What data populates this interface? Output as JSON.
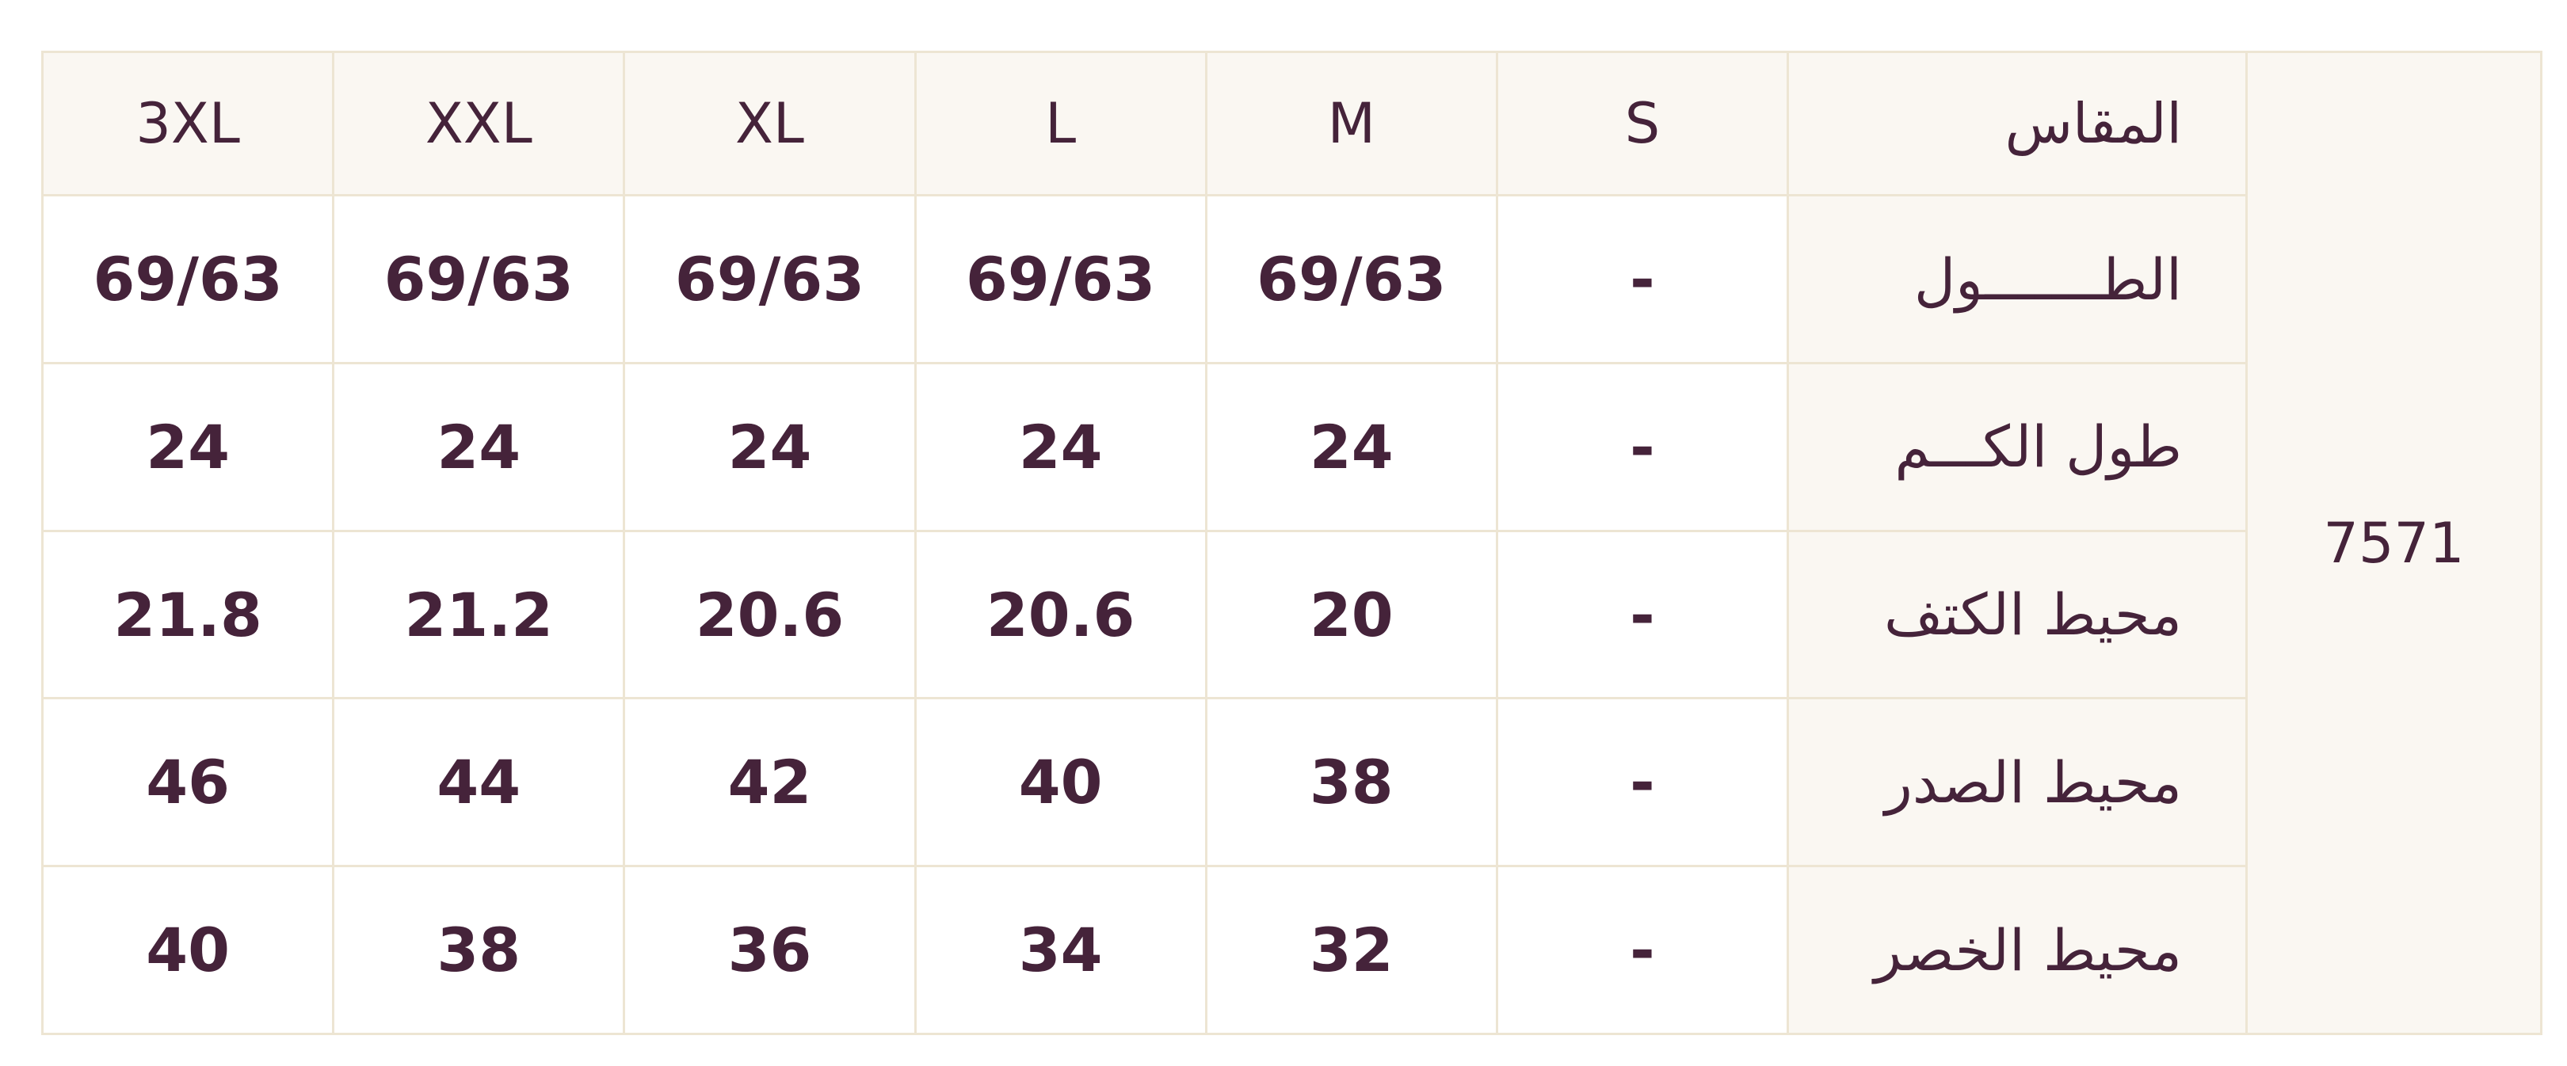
{
  "product_code": "7571",
  "header": {
    "label": "المقاس",
    "sizes": [
      "S",
      "M",
      "L",
      "XL",
      "XXL",
      "3XL"
    ]
  },
  "rows": [
    {
      "label": "الطـــــــول",
      "values": [
        "-",
        "69/63",
        "69/63",
        "69/63",
        "69/63",
        "69/63"
      ]
    },
    {
      "label": "طول الكـــم",
      "values": [
        "-",
        "24",
        "24",
        "24",
        "24",
        "24"
      ]
    },
    {
      "label": "محيط الكتف",
      "values": [
        "-",
        "20",
        "20.6",
        "20.6",
        "21.2",
        "21.8"
      ]
    },
    {
      "label": "محيط الصدر",
      "values": [
        "-",
        "38",
        "40",
        "42",
        "44",
        "46"
      ]
    },
    {
      "label": "محيط الخصر",
      "values": [
        "-",
        "32",
        "34",
        "36",
        "38",
        "40"
      ]
    }
  ],
  "colors": {
    "text": "#45233a",
    "border": "#ede5d3",
    "header_bg": "#faf7f2"
  }
}
